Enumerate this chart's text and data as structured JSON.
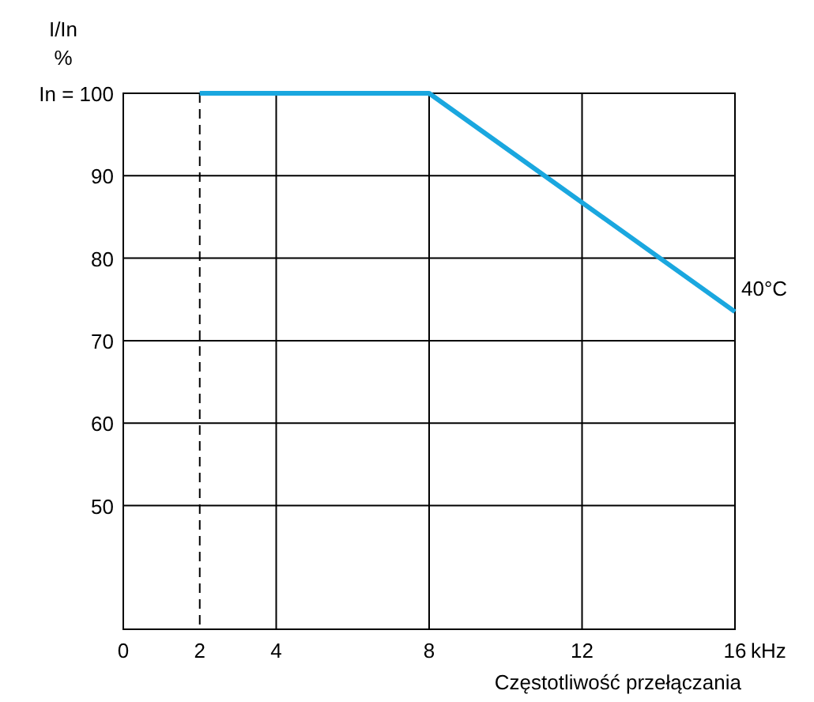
{
  "chart_data": {
    "type": "line",
    "xlabel": "Częstotliwość przełączania",
    "ylabel": "I/In",
    "annotations": [
      "%",
      "kHz"
    ],
    "x": [
      2,
      8,
      16
    ],
    "series": [
      {
        "name": "40°C",
        "color": "#1aa7df",
        "values": [
          100,
          100,
          73.5
        ]
      }
    ],
    "xlim": [
      0,
      16
    ],
    "xticks": [
      0,
      2,
      4,
      8,
      12,
      16
    ],
    "ylim": [
      35,
      100
    ],
    "yticks": [
      50,
      60,
      70,
      80,
      90,
      {
        "value": 100,
        "label": "In = 100"
      }
    ],
    "ref_lines": [
      {
        "axis": "x",
        "value": 2,
        "line_style": "dashed",
        "color": "#000000"
      }
    ],
    "grid": true,
    "legend": false,
    "marker": "none",
    "line_style": "solid"
  }
}
